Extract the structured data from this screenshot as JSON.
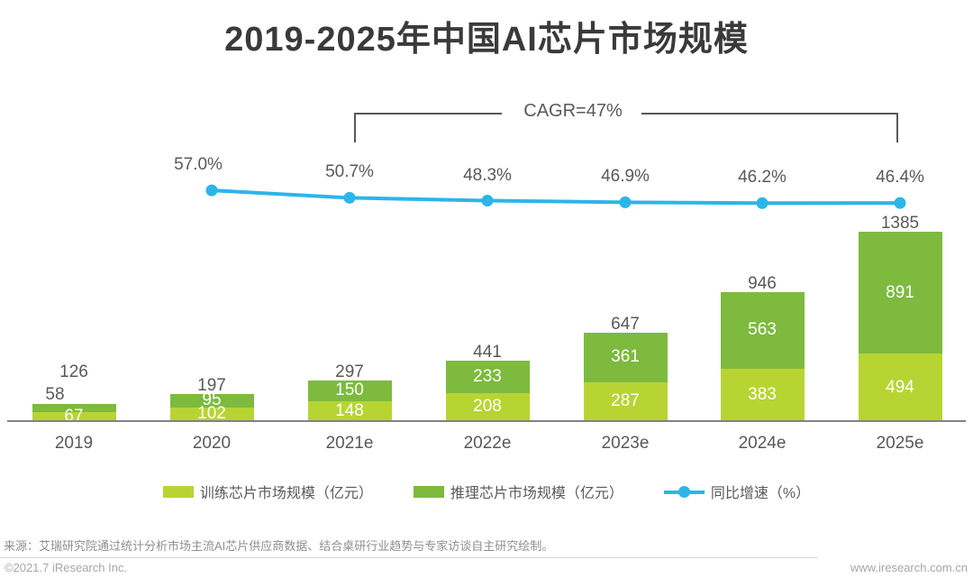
{
  "title": "2019-2025年中国AI芯片市场规模",
  "cagr": {
    "label": "CAGR=47%",
    "span_from": "2021e",
    "span_to": "2025e"
  },
  "chart_data": {
    "type": "bar",
    "subtype": "stacked-bars-with-growth-line",
    "categories": [
      "2019",
      "2020",
      "2021e",
      "2022e",
      "2023e",
      "2024e",
      "2025e"
    ],
    "series": [
      {
        "name": "训练芯片市场规模（亿元）",
        "color": "#b8d433",
        "values": [
          67,
          102,
          148,
          208,
          287,
          383,
          494
        ]
      },
      {
        "name": "推理芯片市场规模（亿元）",
        "color": "#7dba3e",
        "values": [
          58,
          95,
          150,
          233,
          361,
          563,
          891
        ]
      }
    ],
    "totals": [
      126,
      197,
      297,
      441,
      647,
      946,
      1385
    ],
    "line_series": {
      "name": "同比增速（%）",
      "color": "#2cb5e8",
      "categories": [
        "2020",
        "2021e",
        "2022e",
        "2023e",
        "2024e",
        "2025e"
      ],
      "values_pct": [
        57.0,
        50.7,
        48.3,
        46.9,
        46.2,
        46.4
      ],
      "labels": [
        "57.0%",
        "50.7%",
        "48.3%",
        "46.9%",
        "46.2%",
        "46.4%"
      ]
    },
    "annotation": "CAGR=47%",
    "ylabel": "亿元",
    "legend_position": "bottom",
    "grid": false
  },
  "legend": [
    {
      "label": "训练芯片市场规模（亿元）",
      "marker": "swatch",
      "color": "#b8d433"
    },
    {
      "label": "推理芯片市场规模（亿元）",
      "marker": "swatch",
      "color": "#7dba3e"
    },
    {
      "label": "同比增速（%）",
      "marker": "line-dot",
      "color": "#2cb5e8"
    }
  ],
  "source": "来源：艾瑞研究院通过统计分析市场主流AI芯片供应商数据、结合桌研行业趋势与专家访谈自主研究绘制。",
  "footer": {
    "left": "©2021.7 iResearch Inc.",
    "right": "www.iresearch.com.cn"
  }
}
